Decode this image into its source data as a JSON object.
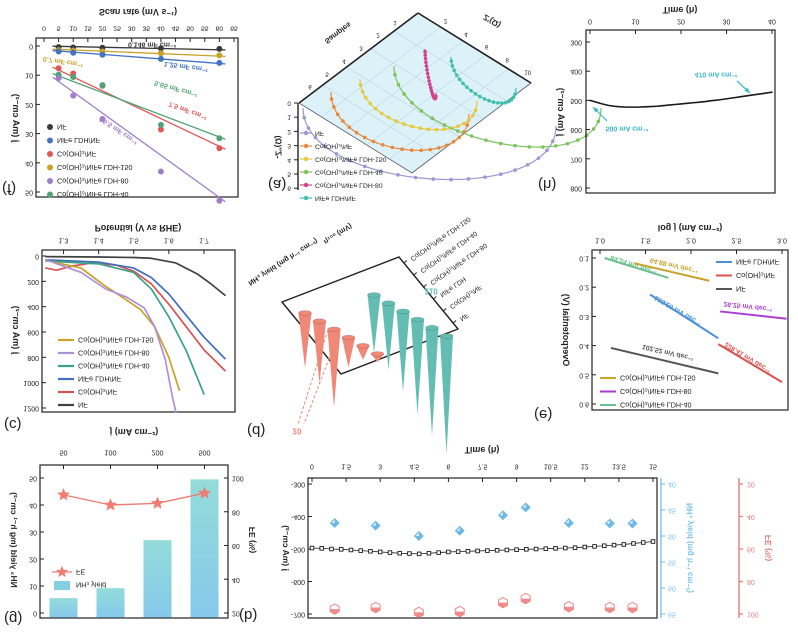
{
  "figure": {
    "background": "#ffffff",
    "note_orientation": "figure rendered vertically mirrored as in screenshot",
    "accent_colors": {
      "black": "#3a3a3a",
      "blue": "#4472c4",
      "red": "#e05757",
      "gold": "#c9a227",
      "purple": "#9e7ec9",
      "green": "#4ea472",
      "cyan": "#3db8c9",
      "teal": "#3fc0ad",
      "salmon": "#f08878",
      "bar_teal": "#93dcd9",
      "bar_blue": "#86c8ec"
    }
  },
  "chart_data": [
    {
      "id": "a",
      "letter": "(a)",
      "type": "nyquist3d",
      "axis_z": "-Z''(Ω)",
      "axis_x": "Z'(Ω)",
      "axis_s": "Samples",
      "zticks": [
        "0",
        "1",
        "2",
        "3",
        "4",
        "5",
        "6"
      ],
      "xticks": [
        "2",
        "4",
        "6",
        "8",
        "10"
      ],
      "sticks": [
        "1",
        "2",
        "3",
        "4",
        "5",
        "6"
      ],
      "plane_color": "#d6eef7",
      "legend": [
        {
          "label": "NF",
          "color": "#9b97d4"
        },
        {
          "label": "Co(OH)₂/NF",
          "color": "#e8883a"
        },
        {
          "label": "Co(OH)₂/NiFe LDH-150",
          "color": "#e5c83d"
        },
        {
          "label": "Co(OH)₂/NiFe LDH-40",
          "color": "#7cc35c"
        },
        {
          "label": "Co(OH)₂/NiFe LDH-80",
          "color": "#d4418e"
        },
        {
          "label": "NiFe LDH/NF",
          "color": "#3fc0ad"
        }
      ],
      "arcs": [
        {
          "color": "#9b97d4",
          "p0": [
            303,
            108
          ],
          "p3": [
            556,
            126
          ],
          "d": 62
        },
        {
          "color": "#e8883a",
          "p0": [
            331,
            92
          ],
          "p3": [
            469,
            114
          ],
          "d": 46
        },
        {
          "color": "#e5c83d",
          "p0": [
            360,
            79
          ],
          "p3": [
            477,
            101
          ],
          "d": 38
        },
        {
          "color": "#7cc35c",
          "p0": [
            394,
            66
          ],
          "p3": [
            601,
            108
          ],
          "d": 56
        },
        {
          "color": "#d4418e",
          "p0": [
            425,
            49
          ],
          "p3": [
            436,
            93
          ],
          "d": 16
        },
        {
          "color": "#3fc0ad",
          "p0": [
            451,
            57
          ],
          "p3": [
            516,
            88
          ],
          "d": 26
        }
      ]
    },
    {
      "id": "b",
      "letter": "(b)",
      "type": "stability",
      "title": "Time (h)",
      "xticks": [
        "0",
        "1.5",
        "3",
        "4.5",
        "6",
        "7.5",
        "9",
        "10.5",
        "12",
        "13.5",
        "15"
      ],
      "ytitle": "j (mA cm⁻²)",
      "yticks": [
        "-300",
        "-400",
        "-500",
        "-600",
        "-700"
      ],
      "y2title": "NH₃ yield (mg h⁻¹ cm⁻²)",
      "y2ticks": [
        "40",
        "45",
        "50",
        "55",
        "60",
        "65"
      ],
      "y3title": "FE (%)",
      "y3ticks": [
        "20",
        "40",
        "60",
        "80",
        "100"
      ],
      "colors": {
        "squares": "#1a1a1a",
        "diamonds": "#6cb9e8",
        "hexagons": "#ef8a8a"
      },
      "squares_t_range": [
        0,
        15
      ],
      "squares_j": [
        -497,
        -498,
        -500,
        -501,
        -503,
        -505,
        -507,
        -509,
        -511,
        -513,
        -514,
        -515,
        -513,
        -511,
        -509,
        -508,
        -507,
        -506,
        -505,
        -504,
        -503,
        -502,
        -501,
        -500,
        -499,
        -498,
        -497,
        -496,
        -494,
        -492,
        -490,
        -488,
        -486,
        -483,
        -480,
        -477
      ],
      "diamonds_t": [
        1.0,
        2.8,
        4.7,
        6.5,
        8.4,
        9.4,
        11.3,
        13.1,
        14.1
      ],
      "diamonds_yield": [
        47.5,
        48,
        50,
        49,
        46,
        44.5,
        47.5,
        47.6,
        47.6
      ],
      "hexagons_fe": [
        97,
        96,
        99,
        98.5,
        93,
        90.5,
        95.5,
        96,
        96
      ]
    },
    {
      "id": "c",
      "letter": "(c)",
      "type": "lsv",
      "title": "Potential (V vs RHE)",
      "xticks": [
        "1.3",
        "1.4",
        "1.5",
        "1.6",
        "1.7"
      ],
      "ytitle": "j (mA cm⁻²)",
      "yticks": [
        "0",
        "200",
        "400",
        "600",
        "800",
        "1000",
        "1200"
      ],
      "legend": [
        {
          "label": "Co(OH)₂/NiFe LDH-150",
          "color": "#c9a227"
        },
        {
          "label": "Co(OH)₂/NiFe LDH-80",
          "color": "#b08fd9"
        },
        {
          "label": "Co(OH)₂/NiFe LDH-40",
          "color": "#3aa384"
        },
        {
          "label": "NiFe LDH/NF",
          "color": "#3f6fbd"
        },
        {
          "label": "Co(OH)₂/NF",
          "color": "#d95252"
        },
        {
          "label": "NF",
          "color": "#404040"
        }
      ],
      "series": [
        {
          "color": "#404040",
          "pts": [
            [
              1.25,
              5
            ],
            [
              1.4,
              8
            ],
            [
              1.5,
              12
            ],
            [
              1.55,
              18
            ],
            [
              1.62,
              55
            ],
            [
              1.68,
              140
            ],
            [
              1.72,
              220
            ],
            [
              1.76,
              310
            ]
          ]
        },
        {
          "color": "#d95252",
          "pts": [
            [
              1.25,
              95
            ],
            [
              1.28,
              112
            ],
            [
              1.32,
              82
            ],
            [
              1.38,
              55
            ],
            [
              1.45,
              72
            ],
            [
              1.5,
              120
            ],
            [
              1.55,
              220
            ],
            [
              1.6,
              380
            ],
            [
              1.65,
              560
            ],
            [
              1.7,
              740
            ],
            [
              1.76,
              905
            ]
          ]
        },
        {
          "color": "#3f6fbd",
          "pts": [
            [
              1.25,
              30
            ],
            [
              1.4,
              48
            ],
            [
              1.5,
              95
            ],
            [
              1.55,
              170
            ],
            [
              1.6,
              300
            ],
            [
              1.65,
              470
            ],
            [
              1.7,
              640
            ],
            [
              1.76,
              810
            ]
          ]
        },
        {
          "color": "#3aa384",
          "pts": [
            [
              1.25,
              40
            ],
            [
              1.4,
              62
            ],
            [
              1.5,
              130
            ],
            [
              1.55,
              260
            ],
            [
              1.6,
              480
            ],
            [
              1.65,
              750
            ],
            [
              1.7,
              1090
            ]
          ]
        },
        {
          "color": "#c9a227",
          "pts": [
            [
              1.25,
              35
            ],
            [
              1.35,
              95
            ],
            [
              1.42,
              240
            ],
            [
              1.47,
              330
            ],
            [
              1.52,
              425
            ],
            [
              1.56,
              560
            ],
            [
              1.6,
              800
            ],
            [
              1.63,
              1060
            ]
          ]
        },
        {
          "color": "#b08fd9",
          "pts": [
            [
              1.25,
              30
            ],
            [
              1.35,
              130
            ],
            [
              1.42,
              260
            ],
            [
              1.48,
              325
            ],
            [
              1.53,
              410
            ],
            [
              1.56,
              560
            ],
            [
              1.59,
              820
            ],
            [
              1.61,
              1110
            ],
            [
              1.62,
              1230
            ]
          ]
        }
      ]
    },
    {
      "id": "d",
      "letter": "(d)",
      "type": "cones3d",
      "axis_left": "NH₃ yield (mg h⁻¹ cm⁻²)",
      "axis_right": "η₁₀₀ (mV)",
      "categories": [
        "Co(OH)₂/NiFe LDH-150",
        "Co(OH)₂/NiFe LDH-40",
        "Co(OH)₂/NiFe LDH-80",
        "NiFe LDH",
        "Co(OH)₂/NF",
        "NF"
      ],
      "red_label": "20",
      "teal_label": "210",
      "red_color": "#f08878",
      "teal_color": "#64bdb2",
      "red_heights": [
        55,
        62,
        78,
        30,
        14,
        8
      ],
      "teal_heights": [
        58,
        66,
        80,
        95,
        108,
        118
      ]
    },
    {
      "id": "e",
      "letter": "(e)",
      "type": "tafel",
      "title": "log j (mA cm⁻²)",
      "xticks": [
        "1.0",
        "1.5",
        "2.0",
        "2.5",
        "3.0"
      ],
      "ytitle": "Overpotential (V)",
      "yticks": [
        "0.1",
        "0.2",
        "0.3",
        "0.4",
        "0.5",
        "0.6"
      ],
      "legend_tr": [
        {
          "label": "NiFe LDH/NF",
          "color": "#4a90d9"
        },
        {
          "label": "Co(OH)₂/NF",
          "color": "#d9534f"
        },
        {
          "label": "NF",
          "color": "#555555"
        }
      ],
      "legend_bl": [
        {
          "label": "Co(OH)₂/NiFe LDH-150",
          "color": "#c9a227"
        },
        {
          "label": "Co(OH)₂/NiFe LDH-80",
          "color": "#a93fd0"
        },
        {
          "label": "Co(OH)₂/NiFe LDH-40",
          "color": "#6abf8f"
        }
      ],
      "lines": [
        {
          "color": "#6abf8f",
          "x1": 1.05,
          "v1": 0.1,
          "x2": 1.75,
          "v2": 0.168,
          "label": "84.24 mV dec⁻¹",
          "lx": 634,
          "ly": 264,
          "ang": 17
        },
        {
          "color": "#c9a227",
          "x1": 1.38,
          "v1": 0.118,
          "x2": 2.2,
          "v2": 0.178,
          "label": "64.88 mV dec⁻¹",
          "lx": 674,
          "ly": 265,
          "ang": 13
        },
        {
          "color": "#4a90d9",
          "x1": 1.55,
          "v1": 0.225,
          "x2": 2.3,
          "v2": 0.375,
          "label": "195.20 mV dec⁻¹",
          "lx": 678,
          "ly": 310,
          "ang": 30
        },
        {
          "color": "#555555",
          "x1": 1.12,
          "v1": 0.408,
          "x2": 2.3,
          "v2": 0.495,
          "label": "102.52 mV dec⁻¹",
          "lx": 668,
          "ly": 352,
          "ang": 13
        },
        {
          "color": "#a93fd0",
          "x1": 2.32,
          "v1": 0.283,
          "x2": 3.05,
          "v2": 0.308,
          "label": "26.25 mV dec⁻¹",
          "lx": 748,
          "ly": 306,
          "ang": 6
        },
        {
          "color": "#d9534f",
          "x1": 2.3,
          "v1": 0.395,
          "x2": 3.0,
          "v2": 0.525,
          "label": "228.41 mV dec⁻¹",
          "lx": 748,
          "ly": 357,
          "ang": 31
        }
      ]
    },
    {
      "id": "f",
      "letter": "(f)",
      "type": "cdl",
      "title": "Scan rate (mV s⁻¹)",
      "xticks": [
        "0",
        "5",
        "10",
        "15",
        "20",
        "25",
        "30",
        "35",
        "40",
        "45",
        "50",
        "55",
        "60",
        "65"
      ],
      "ytitle": "j (mA cm⁻²)",
      "yticks": [
        "0",
        "10",
        "20",
        "30",
        "40",
        "50"
      ],
      "legend": [
        {
          "label": "NF",
          "color": "#3a3a3a"
        },
        {
          "label": "NiFe LDH/NF",
          "color": "#4472c4"
        },
        {
          "label": "Co(OH)₂/NF",
          "color": "#e05757"
        },
        {
          "label": "Co(OH)₂/NiFe LDH-150",
          "color": "#c9a227"
        },
        {
          "label": "Co(OH)₂/NiFe LDH-80",
          "color": "#9e7ec9"
        },
        {
          "label": "Co(OH)₂/NiFe LDH-40",
          "color": "#4ea472"
        }
      ],
      "series": [
        {
          "color": "#3a3a3a",
          "pts": [
            [
              5,
              0.4
            ],
            [
              10,
              0.5
            ],
            [
              20,
              0.6
            ],
            [
              40,
              0.8
            ],
            [
              60,
              1.0
            ]
          ]
        },
        {
          "color": "#c9a227",
          "pts": [
            [
              5,
              1.4
            ],
            [
              10,
              1.6
            ],
            [
              20,
              1.9
            ],
            [
              40,
              2.5
            ],
            [
              60,
              3.2
            ]
          ]
        },
        {
          "color": "#4472c4",
          "pts": [
            [
              5,
              1.9
            ],
            [
              10,
              2.3
            ],
            [
              20,
              3.0
            ],
            [
              40,
              4.4
            ],
            [
              60,
              5.8
            ]
          ]
        },
        {
          "color": "#e05757",
          "pts": [
            [
              5,
              7.6
            ],
            [
              10,
              9.4
            ],
            [
              20,
              13.6
            ],
            [
              40,
              28.6
            ],
            [
              60,
              35.0
            ]
          ]
        },
        {
          "color": "#4ea472",
          "pts": [
            [
              5,
              9.8
            ],
            [
              10,
              10.6
            ],
            [
              20,
              13.4
            ],
            [
              40,
              27.0
            ],
            [
              60,
              31.6
            ]
          ]
        },
        {
          "color": "#9e7ec9",
          "pts": [
            [
              5,
              11.0
            ],
            [
              10,
              17.0
            ],
            [
              20,
              25.0
            ],
            [
              40,
              43.0
            ],
            [
              60,
              53.0
            ]
          ]
        }
      ],
      "annotations": [
        {
          "text": "0.146 mF cm⁻²",
          "x": 152,
          "y": 44,
          "ang": 0,
          "color": "#3a3a3a"
        },
        {
          "text": "0.7 mF cm⁻²",
          "x": 63,
          "y": 61,
          "ang": 8,
          "color": "#c9a227"
        },
        {
          "text": "1.25 mF cm⁻²",
          "x": 186,
          "y": 66,
          "ang": 7,
          "color": "#4472c4"
        },
        {
          "text": "5.65 mF cm⁻²",
          "x": 176,
          "y": 88,
          "ang": 15,
          "color": "#4ea472"
        },
        {
          "text": "7.5 mF cm⁻²",
          "x": 188,
          "y": 110,
          "ang": 20,
          "color": "#e05757"
        },
        {
          "text": "16.5 mF cm⁻²",
          "x": 119,
          "y": 130,
          "ang": 33,
          "color": "#9e7ec9"
        }
      ]
    },
    {
      "id": "g",
      "letter": "(g)",
      "type": "barline",
      "title": "j (mA cm⁻²)",
      "categories": [
        "50",
        "100",
        "200",
        "500"
      ],
      "ytitle": "NH₃ yield (mg h⁻¹ cm⁻²)",
      "yticks": [
        "0",
        "10",
        "20",
        "30",
        "40",
        "50"
      ],
      "y2title": "FE (%)",
      "y2ticks": [
        "20",
        "40",
        "60",
        "80",
        "100"
      ],
      "bars": [
        5.5,
        9.2,
        27,
        49.5
      ],
      "fe": [
        90,
        84,
        85,
        91
      ],
      "legend": [
        {
          "label": "FE",
          "color": "#ef7b72"
        },
        {
          "label": "NH₃ yield",
          "color": "#86cfe0"
        }
      ]
    },
    {
      "id": "h",
      "letter": "(h)",
      "type": "chrono",
      "title": "Time (h)",
      "xticks": [
        "0",
        "10",
        "20",
        "30",
        "40"
      ],
      "ytitle": "j (mA cm⁻²)",
      "yticks": [
        "300",
        "400",
        "500",
        "600",
        "700",
        "800"
      ],
      "curve_t_range": [
        0,
        40
      ],
      "curve_j": [
        500,
        506,
        512,
        517,
        520,
        522,
        523,
        523,
        523,
        522,
        521,
        520,
        518,
        516,
        514,
        512,
        510,
        508,
        506,
        504,
        501,
        499,
        496,
        493,
        490,
        487,
        484,
        481,
        478,
        475,
        472
      ],
      "annotations": [
        {
          "text": "500 mA cm⁻²",
          "x": 627,
          "y": 128,
          "color": "#3db8c9",
          "arrow": [
            607,
            121,
            593,
            107
          ]
        },
        {
          "text": "470 mA cm⁻²",
          "x": 716,
          "y": 74,
          "color": "#3db8c9",
          "arrow": [
            737,
            81,
            750,
            93
          ]
        }
      ]
    }
  ]
}
